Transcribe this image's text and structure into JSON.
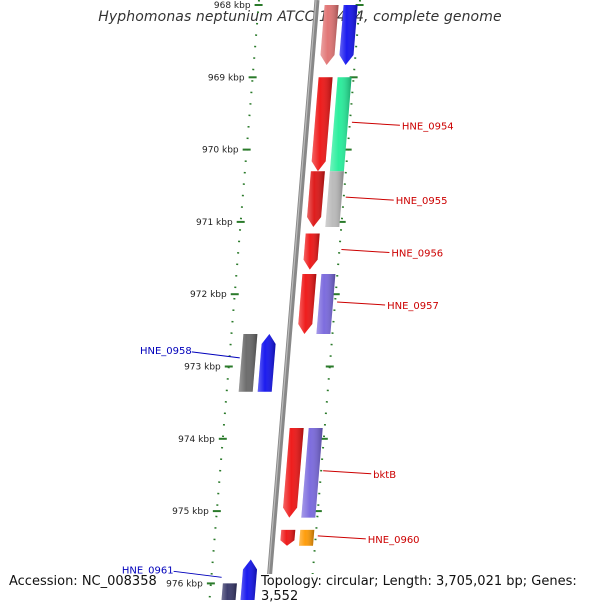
{
  "title": "Hyphomonas neptunium ATCC 15444, complete genome",
  "footer": {
    "accession": "Accession: NC_008358",
    "topology": "Topology: circular; Length: 3,705,021 bp; Genes: 3,552"
  },
  "colors": {
    "backbone": "#888888",
    "ticks": "#2a7a2a",
    "label_forward": "#cc0000",
    "label_reverse": "#0000bb"
  },
  "scale": {
    "unit": "kbp",
    "ticks": [
      {
        "kbp": 968,
        "label": "968 kbp"
      },
      {
        "kbp": 969,
        "label": "969 kbp"
      },
      {
        "kbp": 970,
        "label": "970 kbp"
      },
      {
        "kbp": 971,
        "label": "971 kbp"
      },
      {
        "kbp": 972,
        "label": "972 kbp"
      },
      {
        "kbp": 973,
        "label": "973 kbp"
      },
      {
        "kbp": 974,
        "label": "974 kbp"
      },
      {
        "kbp": 975,
        "label": "975 kbp"
      },
      {
        "kbp": 976,
        "label": "976 kbp"
      }
    ]
  },
  "features": [
    {
      "track": "inner-right",
      "start": 968.0,
      "end": 968.83,
      "strand": "+",
      "color": "#e07070"
    },
    {
      "track": "right",
      "start": 968.0,
      "end": 968.83,
      "strand": "+",
      "color": "#1010ee"
    },
    {
      "track": "inner-right",
      "start": 969.0,
      "end": 970.3,
      "strand": "+",
      "color": "#ee1111",
      "label": "HNE_0954"
    },
    {
      "track": "right",
      "start": 969.0,
      "end": 970.3,
      "strand": "+",
      "color": "#22ee99"
    },
    {
      "track": "inner-right",
      "start": 970.3,
      "end": 971.07,
      "strand": "+",
      "color": "#dd1111",
      "label": "HNE_0955"
    },
    {
      "track": "right",
      "start": 970.3,
      "end": 971.07,
      "strand": "+",
      "color": "#b8b8b8"
    },
    {
      "track": "inner-right",
      "start": 971.16,
      "end": 971.66,
      "strand": "+",
      "color": "#ee1111",
      "label": "HNE_0956"
    },
    {
      "track": "inner-right",
      "start": 971.72,
      "end": 972.55,
      "strand": "+",
      "color": "#ee1111",
      "label": "HNE_0957"
    },
    {
      "track": "right",
      "start": 971.72,
      "end": 972.55,
      "strand": "+",
      "color": "#7766dd"
    },
    {
      "track": "inner-left",
      "start": 972.55,
      "end": 973.35,
      "strand": "-",
      "color": "#1010ee",
      "label": "HNE_0958"
    },
    {
      "track": "left",
      "start": 972.55,
      "end": 973.35,
      "strand": "-",
      "color": "#666666"
    },
    {
      "track": "inner-right",
      "start": 973.85,
      "end": 975.09,
      "strand": "+",
      "color": "#ee1111",
      "label": "bktB"
    },
    {
      "track": "right",
      "start": 973.85,
      "end": 975.09,
      "strand": "+",
      "color": "#7766dd"
    },
    {
      "track": "inner-right",
      "start": 975.26,
      "end": 975.48,
      "strand": "+",
      "color": "#ee1111",
      "label": "HNE_0960"
    },
    {
      "track": "right",
      "start": 975.26,
      "end": 975.48,
      "strand": "+",
      "color": "#ff9900"
    },
    {
      "track": "inner-left",
      "start": 975.67,
      "end": 976.3,
      "strand": "-",
      "color": "#1010ee",
      "label": "HNE_0961"
    },
    {
      "track": "left",
      "start": 976.0,
      "end": 976.3,
      "strand": "-",
      "color": "#333366"
    }
  ]
}
